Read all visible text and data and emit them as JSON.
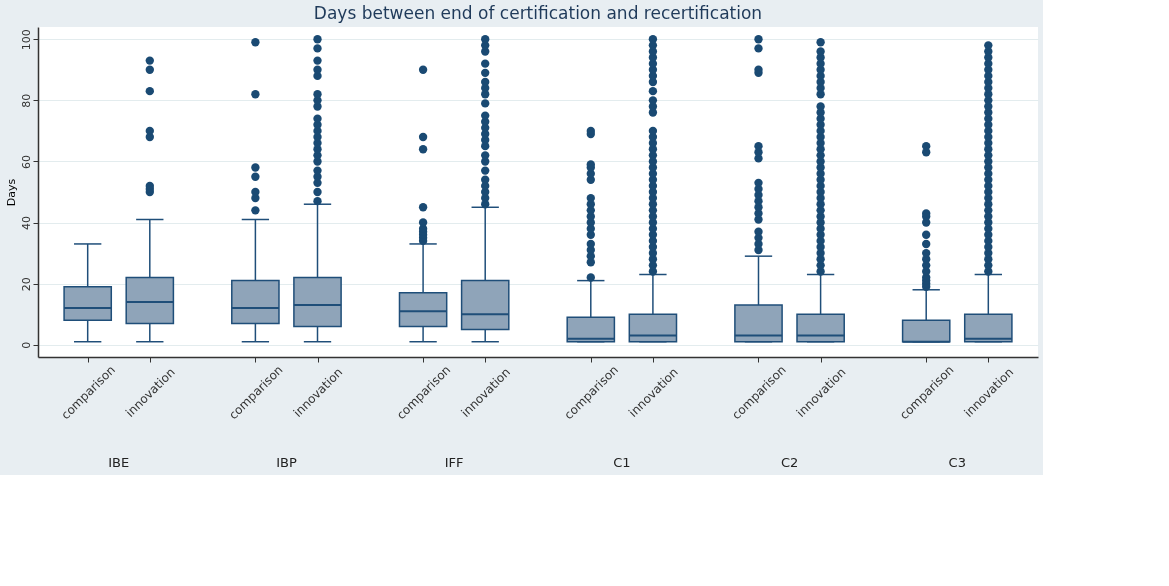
{
  "chart_data": {
    "type": "box",
    "title": "Days between end of certification and recertification",
    "ylabel": "Days",
    "categories": [
      "comparison",
      "innovation",
      "comparison",
      "innovation",
      "comparison",
      "innovation",
      "comparison",
      "innovation",
      "comparison",
      "innovation",
      "comparison",
      "innovation"
    ],
    "annotations": [
      "IBE",
      "IBP",
      "IFF",
      "C1",
      "C2",
      "C3"
    ],
    "ylim": [
      -4,
      104
    ],
    "yticks": [
      0,
      20,
      40,
      60,
      80,
      100
    ],
    "grid": "y",
    "series": [
      {
        "color": "#8fa4b9",
        "boxes": [
          {
            "low": 1,
            "q1": 8,
            "median": 12,
            "q3": 19,
            "high": 33
          },
          {
            "low": 1,
            "q1": 7,
            "median": 14,
            "q3": 22,
            "high": 41,
            "outliers": [
              50,
              51,
              52,
              68,
              70,
              83,
              90,
              93
            ]
          },
          {
            "low": 1,
            "q1": 7,
            "median": 12,
            "q3": 21,
            "high": 41,
            "outliers": [
              44,
              48,
              50,
              55,
              58,
              82,
              99
            ]
          },
          {
            "low": 1,
            "q1": 6,
            "median": 13,
            "q3": 22,
            "high": 46,
            "outliers": [
              47,
              50,
              53,
              55,
              57,
              60,
              62,
              64,
              66,
              68,
              70,
              72,
              74,
              78,
              80,
              82,
              88,
              90,
              93,
              97,
              100
            ]
          },
          {
            "low": 1,
            "q1": 6,
            "median": 11,
            "q3": 17,
            "high": 33,
            "outliers": [
              34,
              35,
              36,
              37,
              38,
              40,
              45,
              64,
              68,
              90
            ]
          },
          {
            "low": 1,
            "q1": 5,
            "median": 10,
            "q3": 21,
            "high": 45,
            "outliers": [
              46,
              48,
              50,
              52,
              54,
              57,
              60,
              62,
              65,
              67,
              69,
              71,
              73,
              75,
              79,
              82,
              84,
              86,
              89,
              92,
              96,
              98,
              100
            ]
          },
          {
            "low": 1,
            "q1": 1,
            "median": 2,
            "q3": 9,
            "high": 21,
            "outliers": [
              22,
              27,
              29,
              31,
              33,
              36,
              38,
              40,
              42,
              44,
              46,
              48,
              54,
              56,
              58,
              59,
              69,
              70
            ]
          },
          {
            "low": 1,
            "q1": 1,
            "median": 3,
            "q3": 10,
            "high": 23,
            "outliers": [
              24,
              26,
              28,
              30,
              32,
              34,
              36,
              38,
              40,
              42,
              44,
              46,
              48,
              50,
              52,
              54,
              56,
              58,
              60,
              62,
              64,
              66,
              68,
              70,
              76,
              78,
              80,
              83,
              86,
              88,
              90,
              92,
              94,
              96,
              98,
              100
            ]
          },
          {
            "low": 1,
            "q1": 1,
            "median": 3,
            "q3": 13,
            "high": 29,
            "outliers": [
              31,
              33,
              35,
              37,
              41,
              43,
              45,
              47,
              49,
              51,
              53,
              61,
              63,
              65,
              89,
              90,
              97,
              100
            ]
          },
          {
            "low": 1,
            "q1": 1,
            "median": 3,
            "q3": 10,
            "high": 23,
            "outliers": [
              24,
              26,
              28,
              30,
              32,
              34,
              36,
              38,
              40,
              42,
              44,
              46,
              48,
              50,
              52,
              54,
              56,
              58,
              60,
              62,
              64,
              66,
              68,
              70,
              72,
              74,
              76,
              78,
              82,
              84,
              86,
              88,
              90,
              92,
              94,
              96,
              99
            ]
          },
          {
            "low": 1,
            "q1": 1,
            "median": 1,
            "q3": 8,
            "high": 18,
            "outliers": [
              19,
              20,
              21,
              22,
              24,
              26,
              28,
              30,
              33,
              36,
              40,
              42,
              43,
              63,
              65
            ]
          },
          {
            "low": 1,
            "q1": 1,
            "median": 2,
            "q3": 10,
            "high": 23,
            "outliers": [
              24,
              26,
              28,
              30,
              32,
              34,
              36,
              38,
              40,
              42,
              44,
              46,
              48,
              50,
              52,
              54,
              56,
              58,
              60,
              62,
              64,
              66,
              68,
              70,
              72,
              74,
              76,
              78,
              80,
              82,
              84,
              86,
              88,
              90,
              92,
              94,
              96,
              98
            ]
          }
        ]
      }
    ]
  }
}
